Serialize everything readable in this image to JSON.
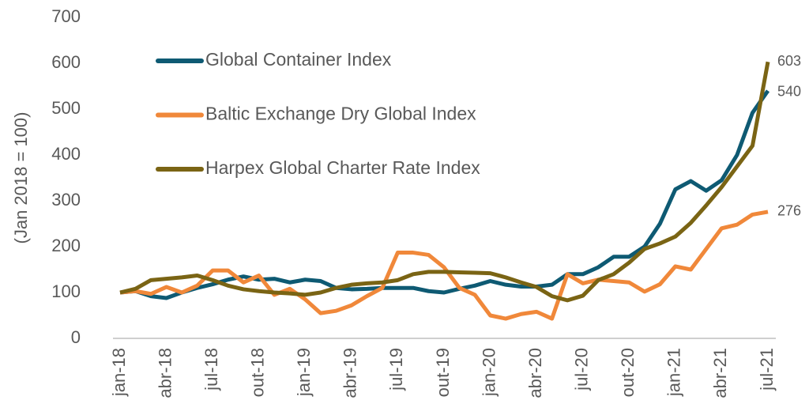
{
  "chart_data": {
    "type": "line",
    "y_label": "(Jan 2018 = 100)",
    "categories": [
      "jan-18",
      null,
      null,
      "abr-18",
      null,
      null,
      "jul-18",
      null,
      null,
      "out-18",
      null,
      null,
      "jan-19",
      null,
      null,
      "abr-19",
      null,
      null,
      "jul-19",
      null,
      null,
      "out-19",
      null,
      null,
      "jan-20",
      null,
      null,
      "abr-20",
      null,
      null,
      "jul-20",
      null,
      null,
      "out-20",
      null,
      null,
      "jan-21",
      null,
      null,
      "abr-21",
      null,
      null,
      "jul-21"
    ],
    "series": [
      {
        "name": "Global Container Index",
        "color": "#0e5a73",
        "label_color": "#0e5a73",
        "values": [
          100,
          103,
          92,
          88,
          100,
          110,
          118,
          128,
          135,
          128,
          130,
          122,
          128,
          125,
          110,
          107,
          108,
          110,
          110,
          110,
          103,
          100,
          108,
          115,
          125,
          117,
          113,
          113,
          117,
          140,
          140,
          155,
          178,
          178,
          200,
          250,
          325,
          343,
          322,
          345,
          400,
          492,
          540
        ]
      },
      {
        "name": "Baltic Exchange Dry Global Index",
        "color": "#f0883a",
        "label_color": "#f0883a",
        "values": [
          100,
          103,
          97,
          112,
          100,
          115,
          148,
          148,
          122,
          137,
          95,
          108,
          85,
          55,
          60,
          72,
          92,
          110,
          187,
          187,
          182,
          155,
          110,
          95,
          50,
          43,
          53,
          58,
          43,
          140,
          120,
          128,
          125,
          122,
          102,
          118,
          157,
          150,
          195,
          240,
          248,
          270,
          276
        ]
      },
      {
        "name": "Harpex Global Charter Rate Index",
        "color": "#7a6414",
        "label_color": "#8a4a1a",
        "values": [
          100,
          108,
          127,
          130,
          133,
          137,
          127,
          115,
          107,
          103,
          100,
          98,
          95,
          100,
          110,
          117,
          120,
          122,
          127,
          140,
          145,
          145,
          144,
          143,
          142,
          133,
          122,
          112,
          92,
          83,
          93,
          127,
          140,
          165,
          195,
          207,
          222,
          252,
          290,
          330,
          375,
          420,
          603
        ]
      }
    ],
    "ylim": [
      0,
      700
    ],
    "yticks": [
      0,
      100,
      200,
      300,
      400,
      500,
      600,
      700
    ]
  }
}
